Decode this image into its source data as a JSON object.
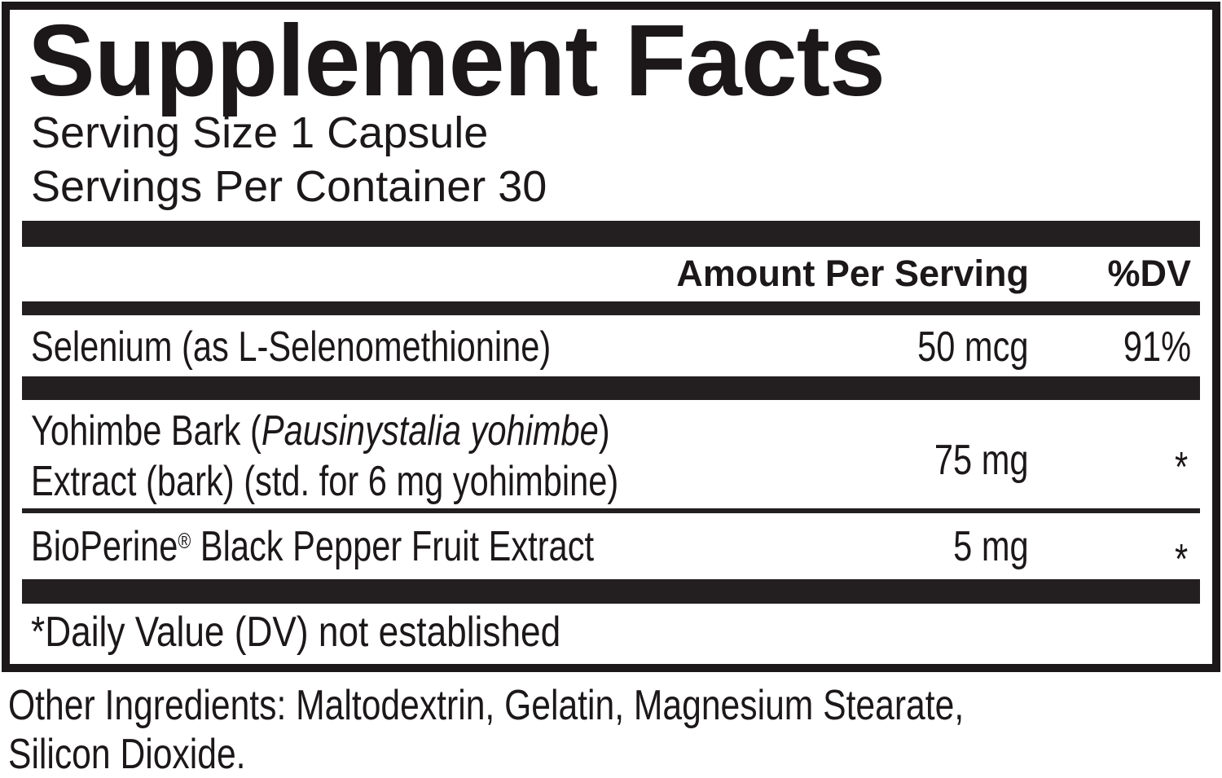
{
  "label": {
    "title": "Supplement Facts",
    "serving_size": "Serving Size 1 Capsule",
    "servings_per_container": "Servings Per Container 30",
    "columns": {
      "amount": "Amount Per Serving",
      "dv": "%DV"
    },
    "rows": [
      {
        "name": "Selenium (as L-Selenomethionine)",
        "amount": "50 mcg",
        "dv": "91%"
      },
      {
        "name_line1_prefix": "Yohimbe Bark (",
        "name_italic": "Pausinystalia yohimbe",
        "name_line1_suffix": ")",
        "name_line2": "Extract (bark) (std. for 6 mg yohimbine)",
        "amount": "75 mg",
        "dv": "*"
      },
      {
        "name_brand": "BioPerine",
        "name_reg": "®",
        "name_rest": " Black Pepper Fruit Extract",
        "amount": "5 mg",
        "dv": "*"
      }
    ],
    "footnote": "*Daily Value (DV) not established",
    "colors": {
      "ink": "#1c1819",
      "bar": "#231f20",
      "background": "#ffffff"
    }
  },
  "other_ingredients": {
    "line1": "Other Ingredients: Maltodextrin, Gelatin, Magnesium Stearate,",
    "line2": "Silicon Dioxide."
  }
}
